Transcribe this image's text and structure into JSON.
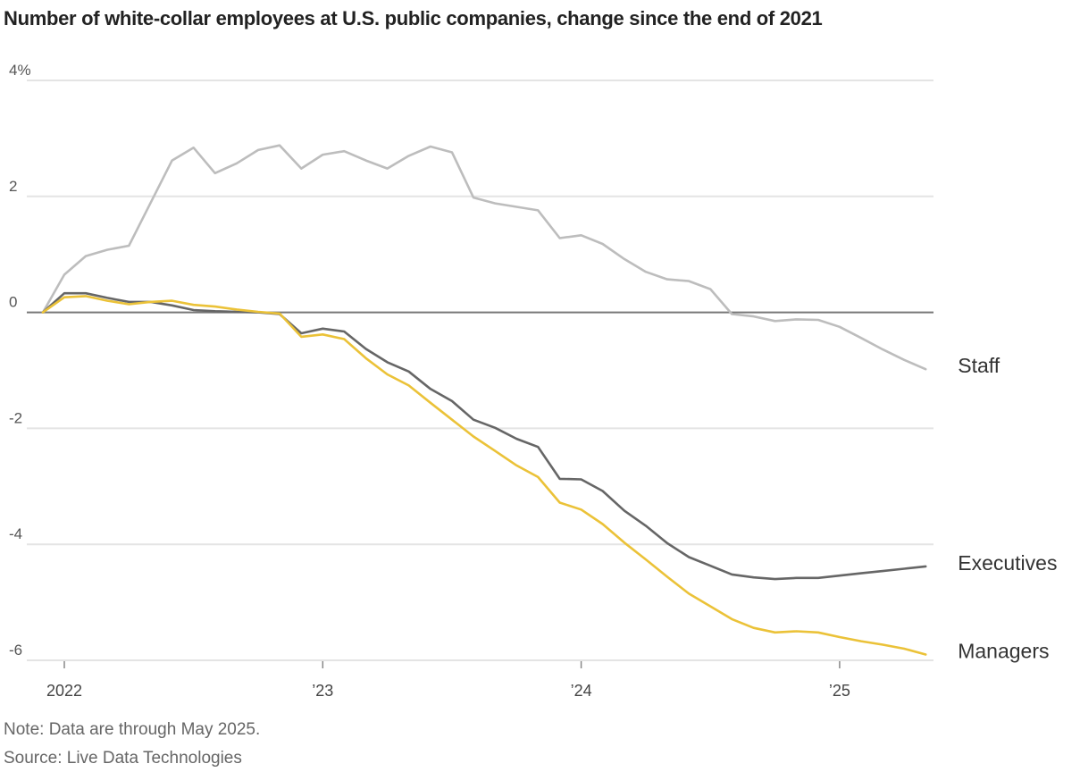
{
  "chart_data": {
    "type": "line",
    "title": "Number of white-collar employees at U.S. public companies, change since the end of 2021",
    "note": "Note: Data are through May 2025.",
    "source": "Source: Live Data Technologies",
    "ylim": [
      -6,
      4
    ],
    "xlim": [
      2021.92,
      2025.42
    ],
    "y_ticks": [
      {
        "value": 4,
        "label": "4%"
      },
      {
        "value": 2,
        "label": "2"
      },
      {
        "value": 0,
        "label": "0"
      },
      {
        "value": -2,
        "label": "-2"
      },
      {
        "value": -4,
        "label": "-4"
      },
      {
        "value": -6,
        "label": "-6"
      }
    ],
    "x_ticks": [
      {
        "value": 2022,
        "label": "2022"
      },
      {
        "value": 2023,
        "label": "’23"
      },
      {
        "value": 2024,
        "label": "’24"
      },
      {
        "value": 2025,
        "label": "’25"
      }
    ],
    "grid": true,
    "x": [
      2021.917,
      2022.0,
      2022.083,
      2022.167,
      2022.25,
      2022.333,
      2022.417,
      2022.5,
      2022.583,
      2022.667,
      2022.75,
      2022.833,
      2022.917,
      2023.0,
      2023.083,
      2023.167,
      2023.25,
      2023.333,
      2023.417,
      2023.5,
      2023.583,
      2023.667,
      2023.75,
      2023.833,
      2023.917,
      2024.0,
      2024.083,
      2024.167,
      2024.25,
      2024.333,
      2024.417,
      2024.5,
      2024.583,
      2024.667,
      2024.75,
      2024.833,
      2024.917,
      2025.0,
      2025.083,
      2025.167,
      2025.25,
      2025.333
    ],
    "series": [
      {
        "name": "Staff",
        "color": "#bdbdbd",
        "values": [
          0.0,
          0.65,
          0.97,
          1.08,
          1.15,
          1.88,
          2.62,
          2.84,
          2.4,
          2.57,
          2.8,
          2.88,
          2.48,
          2.72,
          2.78,
          2.62,
          2.48,
          2.7,
          2.86,
          2.76,
          1.98,
          1.88,
          1.82,
          1.76,
          1.28,
          1.33,
          1.18,
          0.92,
          0.7,
          0.57,
          0.54,
          0.4,
          -0.03,
          -0.07,
          -0.15,
          -0.12,
          -0.13,
          -0.25,
          -0.44,
          -0.64,
          -0.82,
          -0.98
        ]
      },
      {
        "name": "Executives",
        "color": "#666666",
        "values": [
          0.0,
          0.33,
          0.33,
          0.25,
          0.18,
          0.18,
          0.12,
          0.04,
          0.02,
          0.01,
          0.0,
          -0.03,
          -0.36,
          -0.28,
          -0.33,
          -0.63,
          -0.86,
          -1.02,
          -1.32,
          -1.53,
          -1.85,
          -1.99,
          -2.18,
          -2.32,
          -2.87,
          -2.88,
          -3.08,
          -3.42,
          -3.68,
          -3.98,
          -4.22,
          -4.37,
          -4.52,
          -4.57,
          -4.6,
          -4.58,
          -4.58,
          -4.54,
          -4.5,
          -4.46,
          -4.42,
          -4.38
        ]
      },
      {
        "name": "Managers",
        "color": "#ebc238",
        "values": [
          0.0,
          0.26,
          0.28,
          0.2,
          0.14,
          0.18,
          0.2,
          0.13,
          0.1,
          0.05,
          0.01,
          -0.02,
          -0.42,
          -0.38,
          -0.46,
          -0.79,
          -1.07,
          -1.26,
          -1.56,
          -1.85,
          -2.14,
          -2.39,
          -2.64,
          -2.84,
          -3.28,
          -3.4,
          -3.65,
          -3.97,
          -4.26,
          -4.56,
          -4.85,
          -5.07,
          -5.29,
          -5.44,
          -5.52,
          -5.5,
          -5.52,
          -5.6,
          -5.67,
          -5.73,
          -5.8,
          -5.9
        ]
      }
    ]
  }
}
